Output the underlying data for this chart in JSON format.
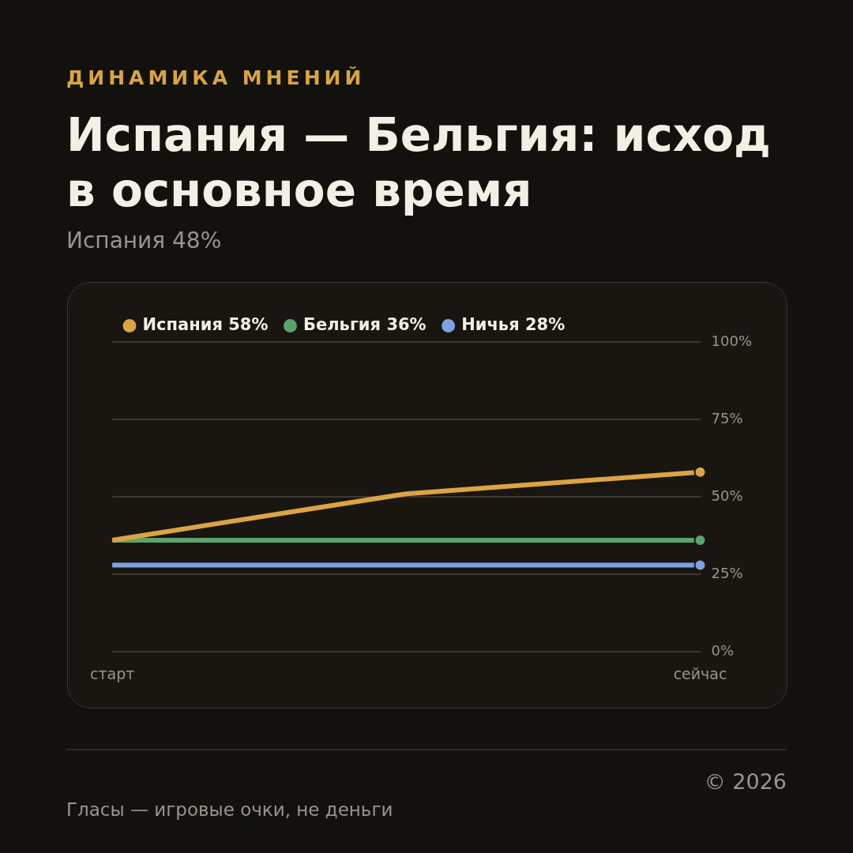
{
  "chart_data": {
    "type": "line",
    "title": "Испания — Бельгия: исход в основное время",
    "subtitle": "Испания 48%",
    "annotations": [
      "ДИНАМИКА МНЕНИЙ",
      "Гласы — игровые очки, не деньги",
      "© 2026"
    ],
    "categories": [
      "старт",
      null,
      "сейчас"
    ],
    "series": [
      {
        "name": "Испания 58%",
        "color": "#dba444",
        "values": [
          36,
          51,
          58
        ]
      },
      {
        "name": "Бельгия 36%",
        "color": "#5ba36b",
        "values": [
          36,
          36,
          36
        ]
      },
      {
        "name": "Ничья 28%",
        "color": "#7ea2e3",
        "values": [
          28,
          28,
          28
        ]
      }
    ],
    "ylim": [
      0,
      100
    ],
    "yticks": [
      {
        "value": 0,
        "label": "0%"
      },
      {
        "value": 25,
        "label": "25%"
      },
      {
        "value": 50,
        "label": "50%"
      },
      {
        "value": 75,
        "label": "75%"
      },
      {
        "value": 100,
        "label": "100%"
      }
    ],
    "grid": "y",
    "legend": "top left",
    "line_style": "solid"
  }
}
